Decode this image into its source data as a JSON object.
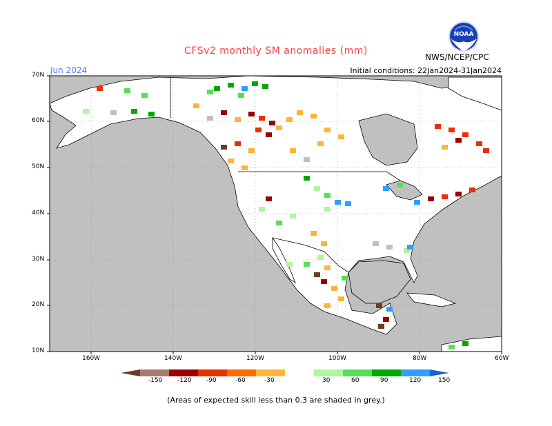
{
  "header": {
    "title": "CFSv2 monthly SM anomalies (mm)",
    "month": "Jun 2024",
    "initial_conditions": "Initial conditions: 22Jan2024-31Jan2024",
    "agency": "NWS/NCEP/CPC",
    "logo_text": "NOAA"
  },
  "map": {
    "projection": "lat-lon",
    "lon_range": [
      -170,
      -60
    ],
    "lat_range": [
      10,
      70
    ],
    "lat_ticks": [
      "70N",
      "60N",
      "50N",
      "40N",
      "30N",
      "20N",
      "10N"
    ],
    "lon_ticks": [
      "160W",
      "140W",
      "120W",
      "100W",
      "80W",
      "60W"
    ],
    "ocean_color": "#c0c0c0",
    "land_color": "#ffffff",
    "grid": "dotted"
  },
  "legend": {
    "labels": [
      "-150",
      "-120",
      "-90",
      "-60",
      "-30",
      "30",
      "60",
      "90",
      "120",
      "150"
    ],
    "colors": [
      "#6b3a2a",
      "#a67c6e",
      "#9b0000",
      "#e83000",
      "#ff6a00",
      "#ffb43a",
      "#ffffff",
      "#b0f5a0",
      "#55e055",
      "#00a800",
      "#2f9fff",
      "#1464d2"
    ],
    "footnote": "(Areas of expected skill less than 0.3 are shaded in grey.)"
  }
}
